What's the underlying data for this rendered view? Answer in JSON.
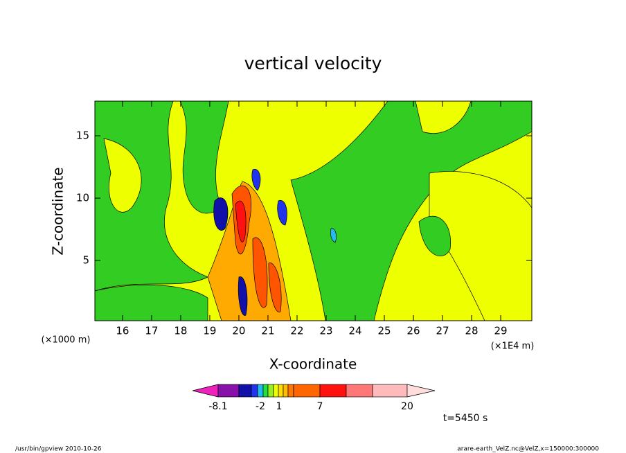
{
  "chart_data": {
    "type": "contour",
    "title": "vertical velocity",
    "xlabel": "X-coordinate",
    "ylabel": "Z-coordinate",
    "x_unit": "(×1E4 m)",
    "y_unit": "(×1000 m)",
    "xlim": [
      15.05,
      30.07
    ],
    "xticks": [
      16,
      17,
      18,
      19,
      20,
      21,
      22,
      23,
      24,
      25,
      26,
      27,
      28,
      29
    ],
    "ylim": [
      0.17,
      17.78
    ],
    "yticks": [
      5,
      10,
      15
    ],
    "colorbar": {
      "colors": [
        "#ee22bb",
        "#8811aa",
        "#1111aa",
        "#2233ee",
        "#22bbee",
        "#22dd44",
        "#99ee22",
        "#eeff00",
        "#ffdd00",
        "#ffbb00",
        "#ff7700",
        "#ff6600",
        "#ff1111",
        "#ff7777",
        "#ffbbbb",
        "#ffdddd"
      ],
      "ticks": [
        -8.1,
        -2,
        1,
        7,
        20
      ]
    },
    "annotation": "t=5450 s",
    "footer_left": "/usr/bin/gpview  2010-10-26",
    "footer_right": "arare-earth_VelZ.nc@VelZ,x=150000:300000"
  }
}
